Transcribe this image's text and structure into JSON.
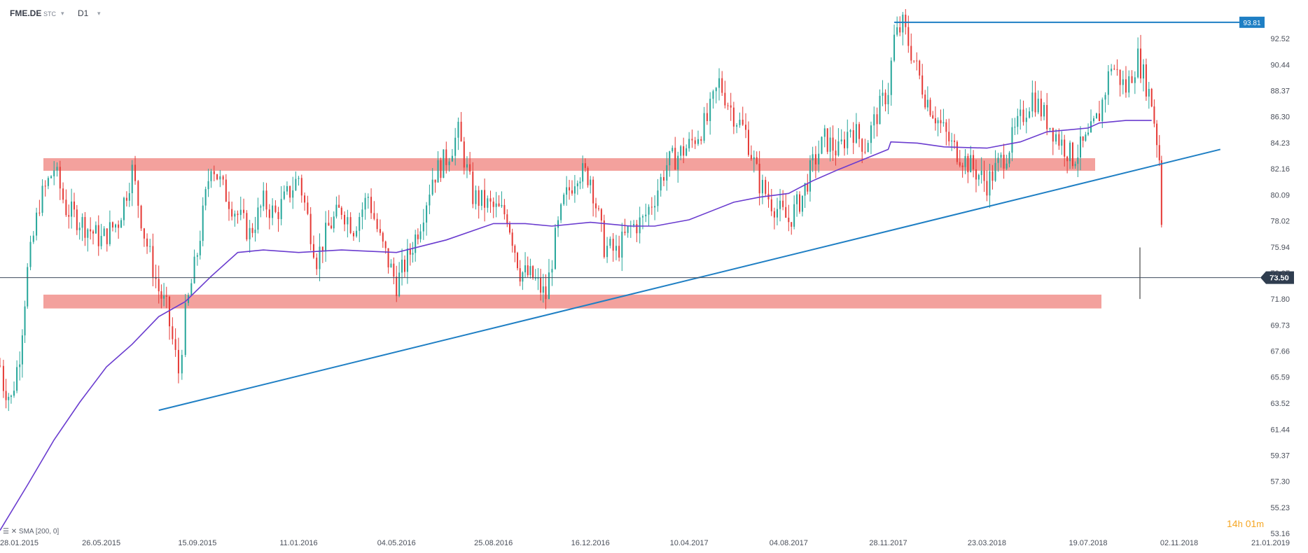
{
  "header": {
    "symbol": "FME.DE",
    "market": "STC",
    "timeframe": "D1"
  },
  "indicator": {
    "label": "SMA",
    "params": "[200, 0]"
  },
  "countdown": {
    "hours": "14",
    "hours_unit": "h",
    "minutes": "01",
    "minutes_unit": "m"
  },
  "colors": {
    "up_candle": "#26a69a",
    "down_candle": "#e53935",
    "sma": "#6a3ccf",
    "trendline": "#1f7fc4",
    "zone": "#f08a84",
    "price_line": "#3b4a5c",
    "price_tag_bg": "#2f3d4f",
    "peak_tag_bg": "#1f7fc4"
  },
  "chart_data": {
    "type": "line",
    "title": "",
    "symbol": "FME.DE",
    "timeframe": "D1",
    "x_tick_labels": [
      "28.01.2015",
      "26.05.2015",
      "15.09.2015",
      "11.01.2016",
      "04.05.2016",
      "25.08.2016",
      "16.12.2016",
      "10.04.2017",
      "04.08.2017",
      "28.11.2017",
      "23.03.2018",
      "19.07.2018",
      "02.11.2018",
      "21.01.2019"
    ],
    "y_tick_labels": [
      "92.52",
      "90.44",
      "88.37",
      "86.30",
      "84.23",
      "82.16",
      "80.09",
      "78.02",
      "75.94",
      "73.87",
      "71.80",
      "69.73",
      "67.66",
      "65.59",
      "63.52",
      "61.44",
      "59.37",
      "57.30",
      "55.23",
      "53.16"
    ],
    "ylim": [
      53.16,
      94.6
    ],
    "grid": false,
    "current_price": 73.5,
    "current_price_label": "73.50",
    "peak_price": 93.81,
    "peak_price_label": "93.81",
    "series": [
      {
        "name": "SMA",
        "params": "[200, 0]",
        "x": [
          "28.01.2015",
          "01.03.2015",
          "01.04.2015",
          "01.05.2015",
          "01.06.2015",
          "01.07.2015",
          "01.08.2015",
          "01.09.2015",
          "01.10.2015",
          "01.11.2015",
          "01.12.2015",
          "11.01.2016",
          "01.03.2016",
          "04.05.2016",
          "01.07.2016",
          "25.08.2016",
          "01.10.2016",
          "01.11.2016",
          "16.12.2016",
          "01.02.2017",
          "01.03.2017",
          "10.04.2017",
          "01.06.2017",
          "01.07.2017",
          "04.08.2017",
          "01.09.2017",
          "01.10.2017",
          "28.11.2017",
          "01.12.2017",
          "01.01.2018",
          "01.02.2018",
          "23.03.2018",
          "01.05.2018",
          "01.06.2018",
          "19.07.2018",
          "01.08.2018",
          "01.09.2018",
          "01.10.2018"
        ],
        "y": [
          53.4,
          57.0,
          60.6,
          63.6,
          66.4,
          68.2,
          70.4,
          71.6,
          73.6,
          75.5,
          75.7,
          75.5,
          75.7,
          75.5,
          76.5,
          77.8,
          77.8,
          77.6,
          77.9,
          77.6,
          77.6,
          78.1,
          79.5,
          79.9,
          80.2,
          81.2,
          82.1,
          83.7,
          84.3,
          84.2,
          83.9,
          83.8,
          84.3,
          85.1,
          85.4,
          85.8,
          86.0,
          86.0
        ]
      },
      {
        "name": "price (sampled closes)",
        "x": [
          "28.01.2015",
          "01.02.2015",
          "10.02.2015",
          "20.02.2015",
          "01.03.2015",
          "15.03.2015",
          "01.04.2015",
          "15.04.2015",
          "26.05.2015",
          "15.06.2015",
          "01.07.2015",
          "15.07.2015",
          "01.08.2015",
          "10.08.2015",
          "24.08.2015",
          "01.09.2015",
          "15.09.2015",
          "01.10.2015",
          "15.10.2015",
          "01.11.2015",
          "15.11.2015",
          "01.12.2015",
          "15.12.2015",
          "11.01.2016",
          "01.02.2016",
          "15.02.2016",
          "01.03.2016",
          "15.03.2016",
          "01.04.2016",
          "15.04.2016",
          "04.05.2016",
          "20.05.2016",
          "01.06.2016",
          "15.06.2016",
          "01.07.2016",
          "15.07.2016",
          "01.08.2016",
          "25.08.2016",
          "10.09.2016",
          "25.09.2016",
          "10.10.2016",
          "25.10.2016",
          "05.11.2016",
          "15.11.2016",
          "01.12.2016",
          "16.12.2016",
          "01.01.2017",
          "15.01.2017",
          "01.02.2017",
          "15.02.2017",
          "01.03.2017",
          "15.03.2017",
          "10.04.2017",
          "01.05.2017",
          "15.05.2017",
          "01.06.2017",
          "15.06.2017",
          "01.07.2017",
          "15.07.2017",
          "04.08.2017",
          "20.08.2017",
          "01.09.2017",
          "15.09.2017",
          "01.10.2017",
          "15.10.2017",
          "01.11.2017",
          "15.11.2017",
          "28.11.2017",
          "05.12.2017",
          "15.12.2017",
          "10.01.2018",
          "25.01.2018",
          "10.02.2018",
          "23.03.2018",
          "15.04.2018",
          "01.05.2018",
          "15.05.2018",
          "01.06.2018",
          "15.06.2018",
          "01.07.2018",
          "19.07.2018",
          "01.08.2018",
          "15.08.2018",
          "01.09.2018",
          "15.09.2018",
          "01.10.2018",
          "10.10.2018",
          "15.10.2018"
        ],
        "y": [
          66.5,
          65.0,
          63.8,
          67.5,
          74.0,
          79.5,
          82.2,
          79.0,
          76.5,
          78.0,
          82.0,
          77.0,
          72.5,
          71.0,
          66.0,
          70.5,
          75.5,
          82.8,
          80.5,
          78.5,
          77.0,
          79.5,
          78.5,
          81.5,
          75.0,
          77.5,
          79.0,
          77.5,
          80.0,
          76.5,
          73.0,
          75.5,
          78.0,
          81.5,
          83.0,
          85.0,
          80.0,
          79.0,
          78.5,
          74.0,
          73.5,
          72.0,
          76.5,
          79.5,
          82.0,
          81.5,
          76.0,
          75.5,
          77.5,
          78.0,
          80.0,
          82.5,
          84.0,
          86.0,
          89.0,
          86.5,
          85.0,
          81.0,
          79.5,
          78.0,
          80.0,
          82.5,
          84.5,
          83.5,
          85.5,
          84.0,
          86.5,
          88.5,
          92.5,
          93.6,
          88.0,
          86.0,
          84.0,
          81.0,
          83.5,
          86.0,
          88.0,
          86.0,
          84.5,
          83.0,
          84.5,
          86.5,
          90.5,
          88.5,
          91.0,
          87.5,
          83.0,
          73.5
        ]
      }
    ],
    "annotations": {
      "resistance_zone": [
        82.0,
        83.0
      ],
      "support_zone": [
        71.05,
        72.15
      ],
      "trendline_from": {
        "x": "01.08.2015",
        "y": 62.95
      },
      "trendline_to": {
        "x": "20.12.2018",
        "y": 83.7
      },
      "peak_line": {
        "from_x": "05.12.2017",
        "y": 93.81
      }
    }
  }
}
